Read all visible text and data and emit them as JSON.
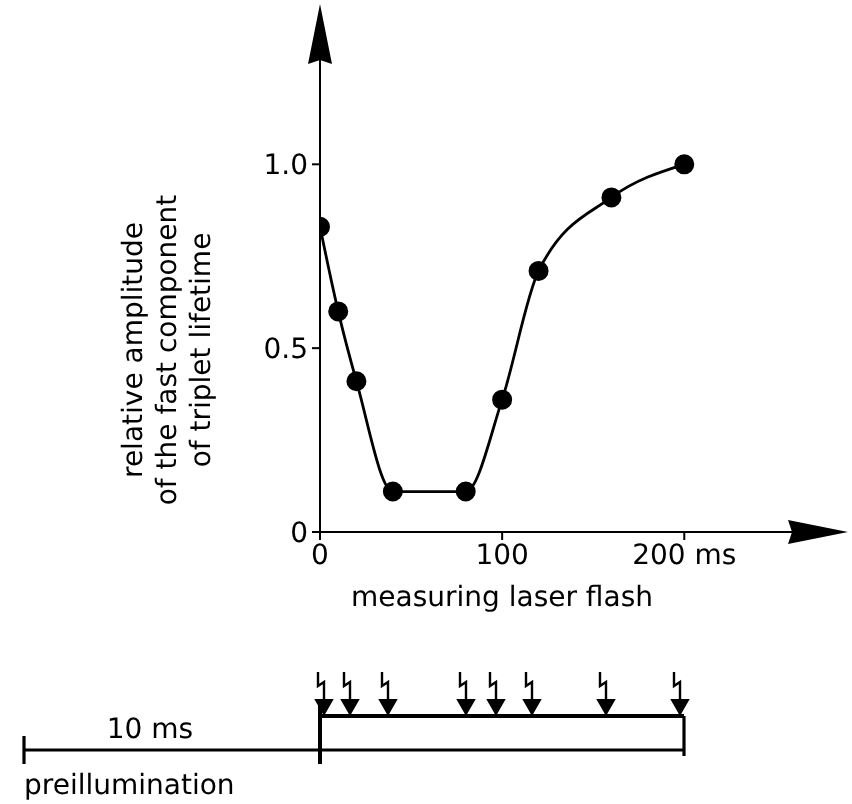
{
  "chart_data": {
    "type": "line",
    "xlabel": "measuring laser flash",
    "ylabel": "relative amplitude\nof the fast component\nof triplet lifetime",
    "x": [
      0,
      10,
      20,
      40,
      80,
      100,
      120,
      160,
      200
    ],
    "series": [
      {
        "color": "#000000",
        "values": [
          0.83,
          0.6,
          0.41,
          0.11,
          0.11,
          0.36,
          0.71,
          0.91,
          1.0
        ]
      }
    ],
    "xlim": [
      0,
      280
    ],
    "xticks": [
      0,
      100,
      {
        "value": 200,
        "label": "200 ms"
      }
    ],
    "ylim": [
      0,
      1.3
    ],
    "yticks": [
      0,
      0.5,
      {
        "value": 1,
        "label": "1.0"
      }
    ],
    "marker": "circle",
    "line_style": "solid",
    "annotations": [
      "10 ms",
      "preillumination"
    ]
  }
}
